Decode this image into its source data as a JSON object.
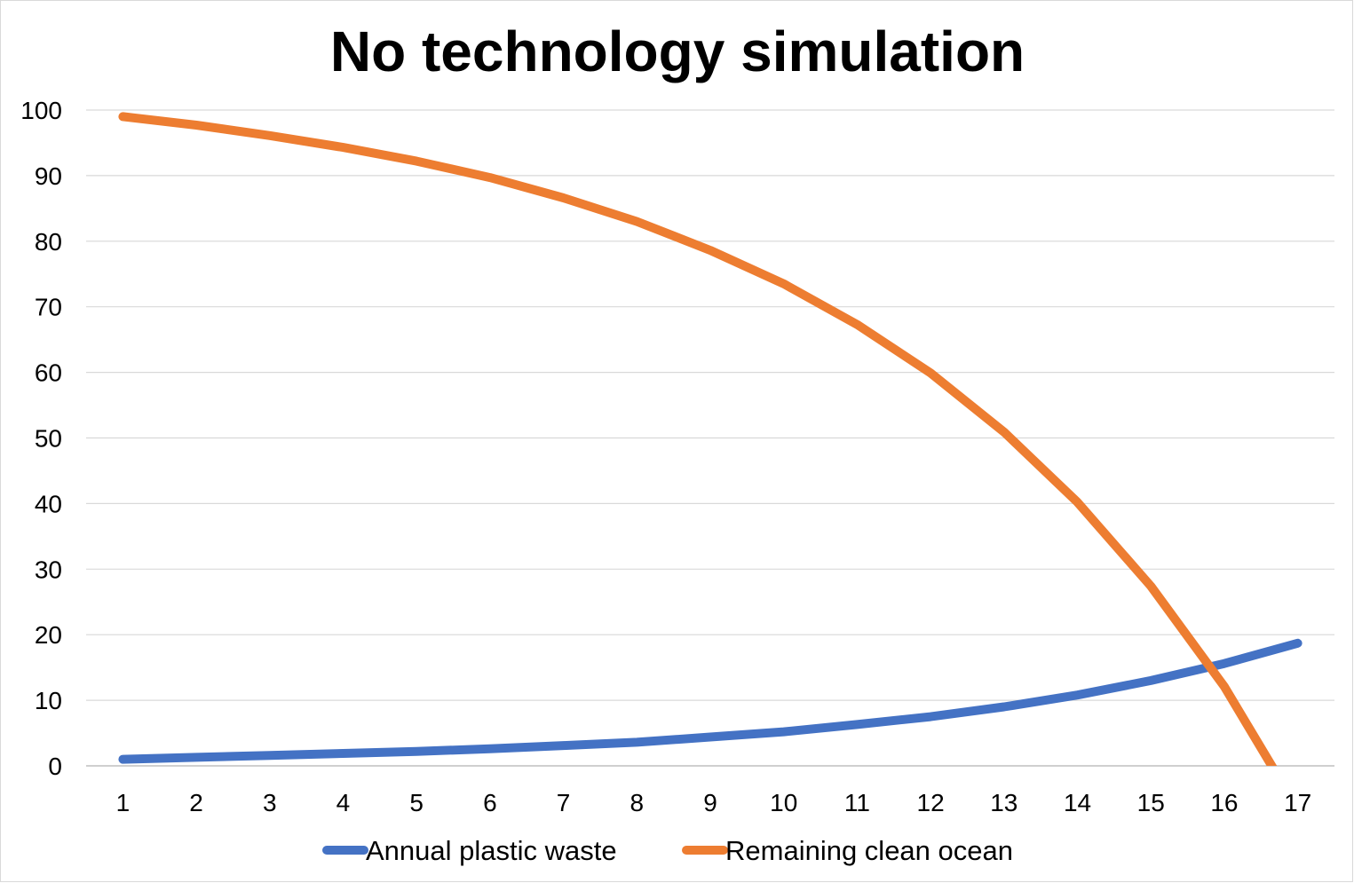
{
  "chart_data": {
    "type": "line",
    "title": "No technology simulation",
    "xlabel": "",
    "ylabel": "",
    "categories": [
      "1",
      "2",
      "3",
      "4",
      "5",
      "6",
      "7",
      "8",
      "9",
      "10",
      "11",
      "12",
      "13",
      "14",
      "15",
      "16",
      "17"
    ],
    "ylim": [
      0,
      100
    ],
    "yticks": [
      0,
      10,
      20,
      30,
      40,
      50,
      60,
      70,
      80,
      90,
      100
    ],
    "grid": true,
    "legend_position": "bottom",
    "series": [
      {
        "name": "Annual plastic waste",
        "color": "#4472C4",
        "values": [
          1.0,
          1.3,
          1.6,
          1.9,
          2.2,
          2.6,
          3.1,
          3.6,
          4.4,
          5.2,
          6.3,
          7.5,
          9.0,
          10.8,
          13.0,
          15.6,
          18.7
        ]
      },
      {
        "name": "Remaining clean ocean",
        "color": "#ED7D31",
        "values": [
          99.0,
          97.7,
          96.1,
          94.3,
          92.2,
          89.7,
          86.6,
          83.0,
          78.6,
          73.5,
          67.3,
          59.9,
          50.9,
          40.2,
          27.4,
          12.1,
          -6.6
        ]
      }
    ]
  }
}
